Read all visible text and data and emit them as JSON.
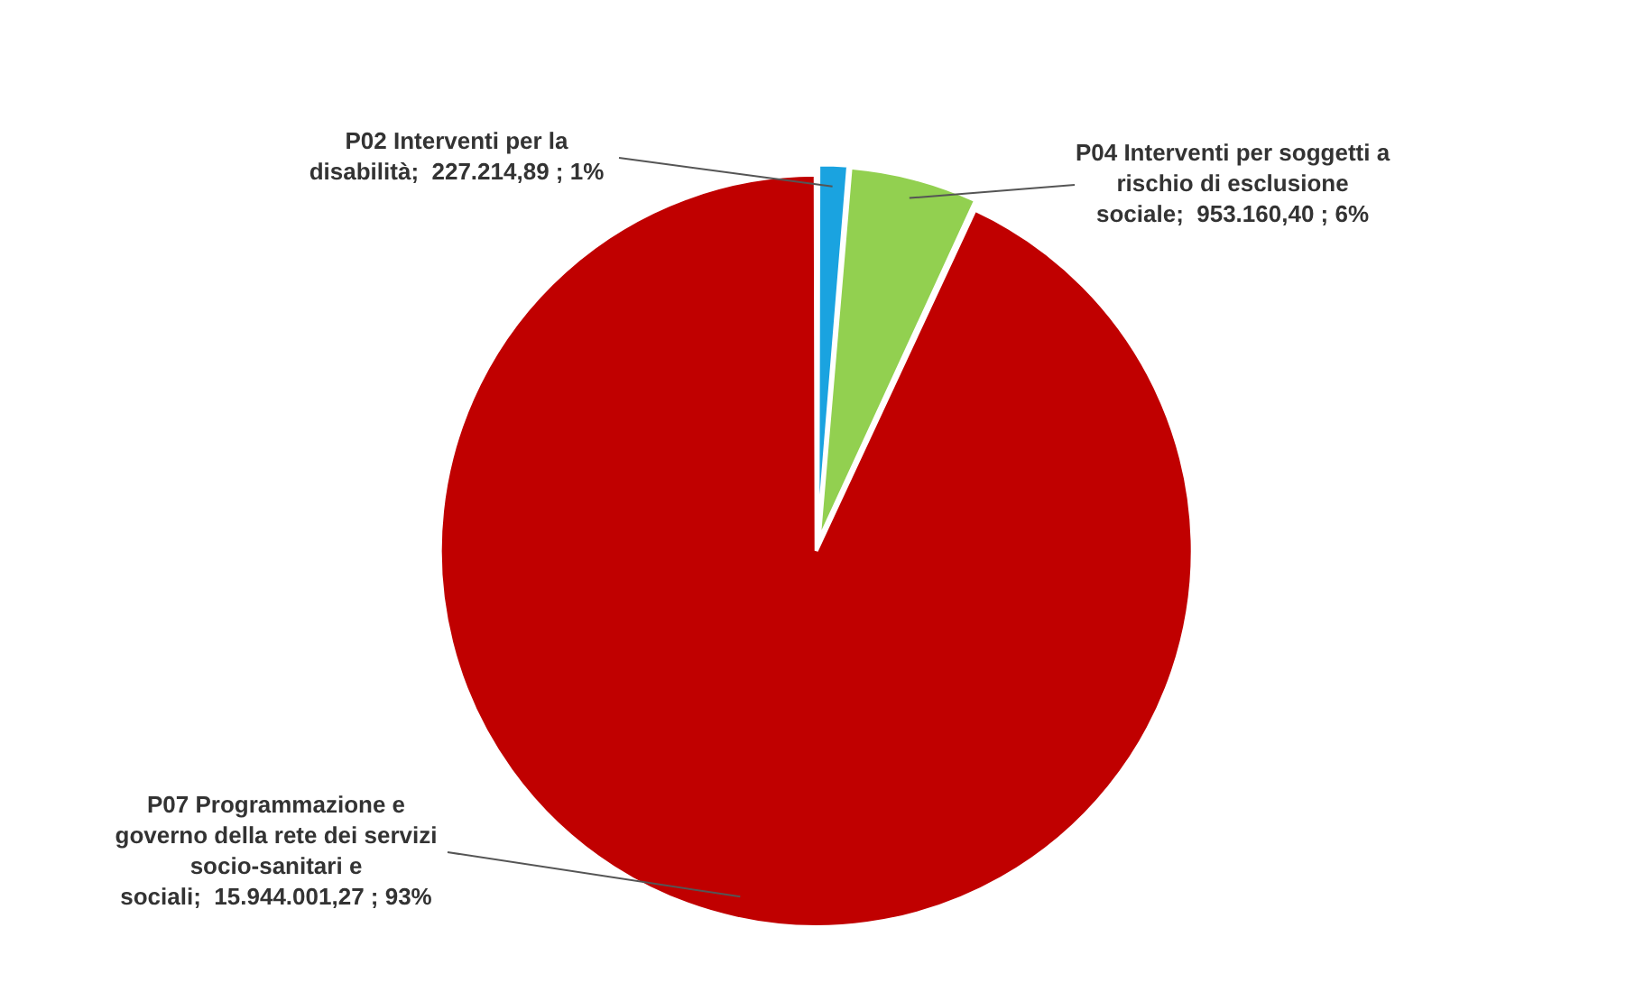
{
  "chart_data": {
    "type": "pie",
    "categories": [
      "P02 Interventi per la disabilità",
      "P04 Interventi per soggetti a rischio di esclusione sociale",
      "P07 Programmazione e governo della rete dei servizi socio-sanitari e sociali"
    ],
    "values": [
      227214.89,
      953160.4,
      15944001.27
    ],
    "value_labels": [
      "227.214,89 ; 1%",
      "953.160,40 ; 6%",
      "15.944.001,27 ; 93%"
    ],
    "colors": [
      "#1aa3e0",
      "#92d050",
      "#c00000"
    ],
    "legend": false
  }
}
